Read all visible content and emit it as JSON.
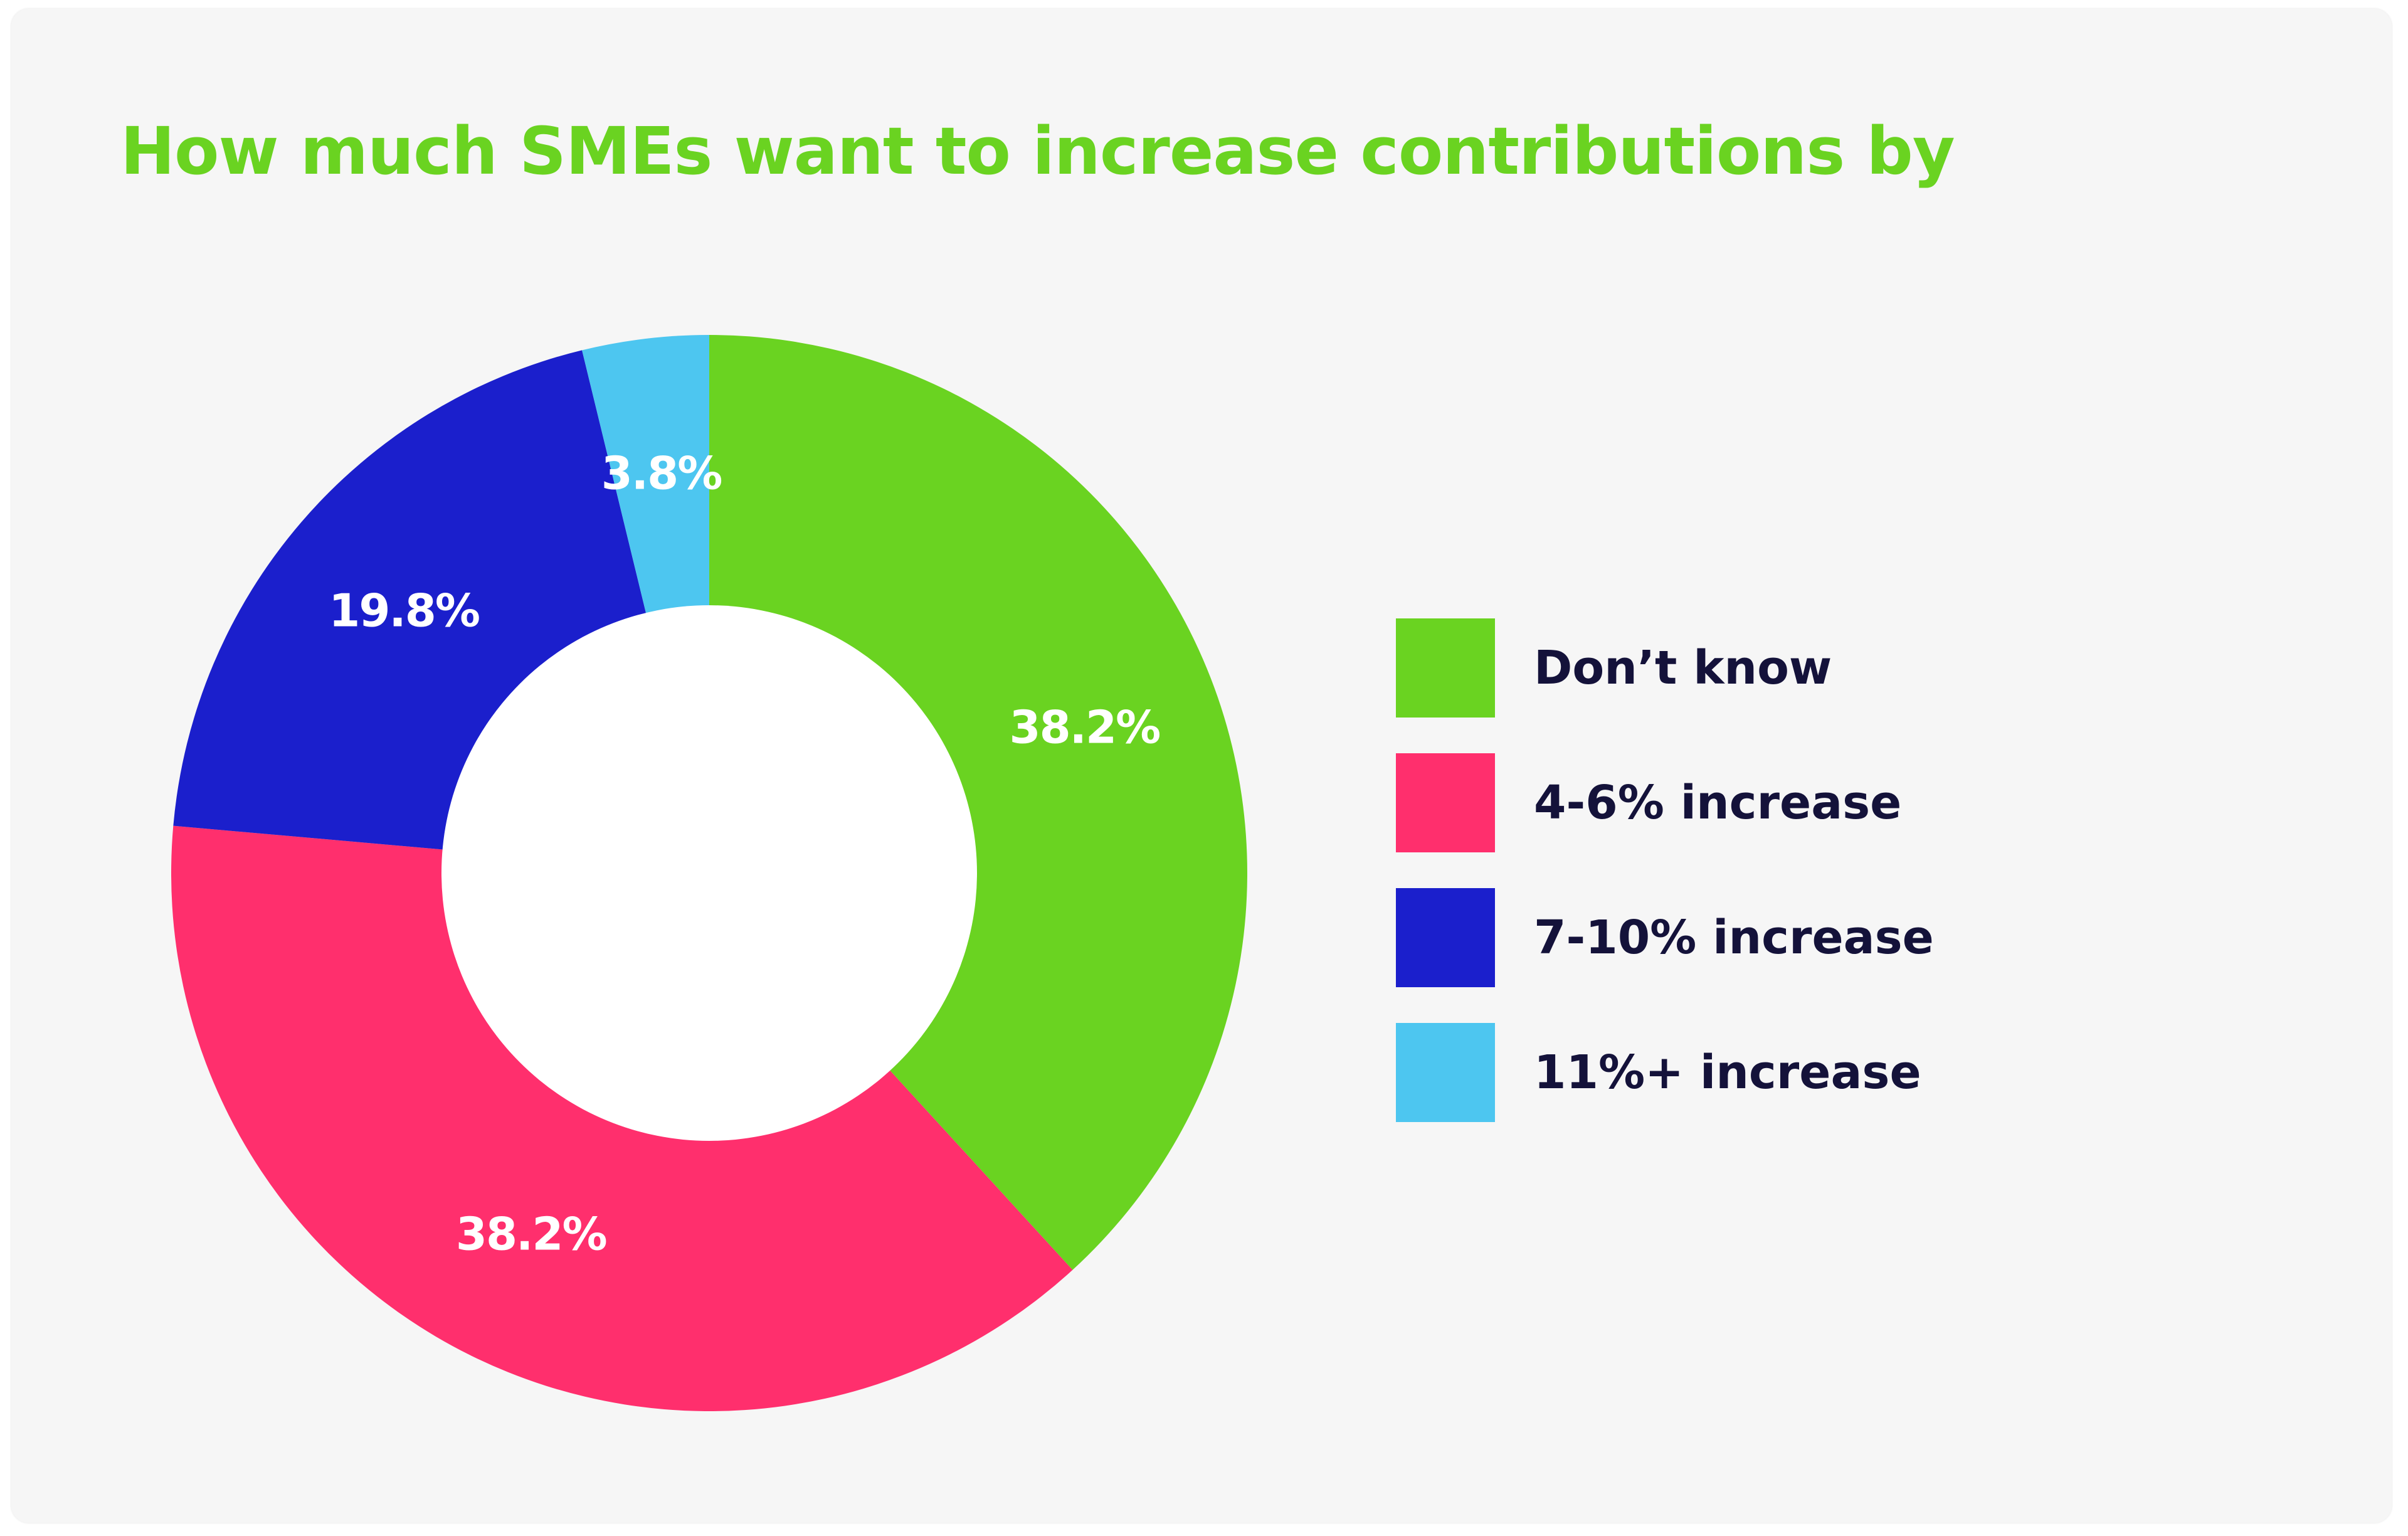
{
  "colors": {
    "title": "#6ad321",
    "legend_text": "#14123a",
    "card": "#f6f6f6"
  },
  "chart_data": {
    "type": "pie",
    "style": "donut",
    "title": "How much SMEs want to increase contributions by",
    "start_angle_deg": 0,
    "direction": "clockwise",
    "legend_position": "right",
    "slices": [
      {
        "label": "Don’t know",
        "value": 38.2,
        "display": "38.2%",
        "color": "#6ad321"
      },
      {
        "label": "4-6% increase",
        "value": 38.2,
        "display": "38.2%",
        "color": "#ff2f6d"
      },
      {
        "label": "7-10% increase",
        "value": 19.8,
        "display": "19.8%",
        "color": "#1b1fcc"
      },
      {
        "label": "11%+ increase",
        "value": 3.8,
        "display": "3.8%",
        "color": "#4dc6f0"
      }
    ]
  }
}
